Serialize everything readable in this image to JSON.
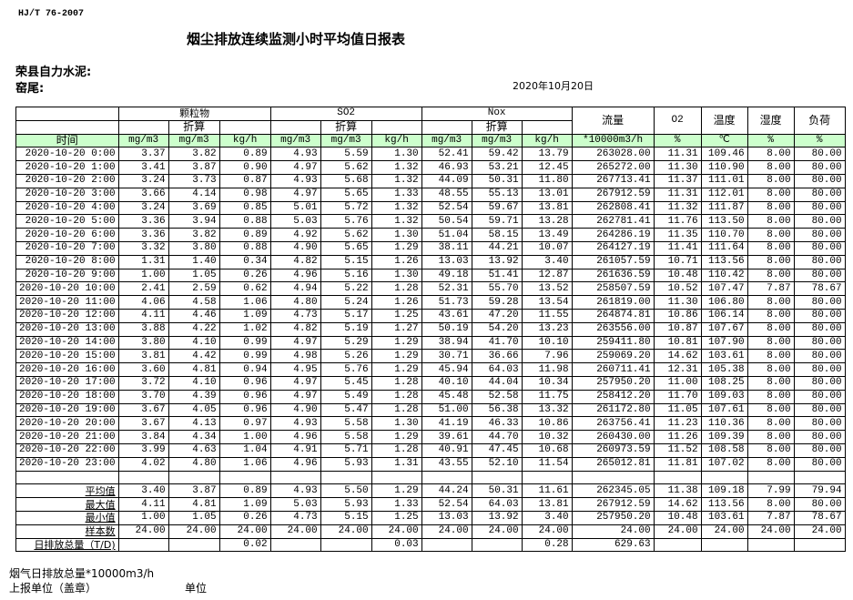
{
  "standard": "HJ/T  76-2007",
  "title": "烟尘排放连续监测小时平均值日报表",
  "company": "荣县自力水泥:",
  "kiln": "窑尾:",
  "date": "2020年10月20日",
  "header": {
    "pm": "颗粒物",
    "so2": "SO2",
    "nox": "Nox",
    "converted": "折算",
    "flow": "流量",
    "o2": "O2",
    "temp": "温度",
    "humidity": "湿度",
    "load": "负荷",
    "units": [
      "时间",
      "mg/m3",
      "mg/m3",
      "kg/h",
      "mg/m3",
      "mg/m3",
      "kg/h",
      "mg/m3",
      "mg/m3",
      "kg/h",
      "*10000m3/h",
      "%",
      "℃",
      "%",
      "%"
    ]
  },
  "colors": {
    "unit_row_bg": "#ccffcc"
  },
  "rows": [
    [
      "2020-10-20 0:00",
      "3.37",
      "3.82",
      "0.89",
      "4.93",
      "5.59",
      "1.30",
      "52.41",
      "59.42",
      "13.79",
      "263028.00",
      "11.31",
      "109.46",
      "8.00",
      "80.00"
    ],
    [
      "2020-10-20 1:00",
      "3.41",
      "3.87",
      "0.90",
      "4.97",
      "5.62",
      "1.32",
      "46.93",
      "53.21",
      "12.45",
      "265272.00",
      "11.30",
      "110.90",
      "8.00",
      "80.00"
    ],
    [
      "2020-10-20 2:00",
      "3.24",
      "3.73",
      "0.87",
      "4.93",
      "5.68",
      "1.32",
      "44.09",
      "50.31",
      "11.80",
      "267713.41",
      "11.37",
      "111.01",
      "8.00",
      "80.00"
    ],
    [
      "2020-10-20 3:00",
      "3.66",
      "4.14",
      "0.98",
      "4.97",
      "5.65",
      "1.33",
      "48.55",
      "55.13",
      "13.01",
      "267912.59",
      "11.31",
      "112.01",
      "8.00",
      "80.00"
    ],
    [
      "2020-10-20 4:00",
      "3.24",
      "3.69",
      "0.85",
      "5.01",
      "5.72",
      "1.32",
      "52.54",
      "59.67",
      "13.81",
      "262808.41",
      "11.32",
      "111.87",
      "8.00",
      "80.00"
    ],
    [
      "2020-10-20 5:00",
      "3.36",
      "3.94",
      "0.88",
      "5.03",
      "5.76",
      "1.32",
      "50.54",
      "59.71",
      "13.28",
      "262781.41",
      "11.76",
      "113.50",
      "8.00",
      "80.00"
    ],
    [
      "2020-10-20 6:00",
      "3.36",
      "3.82",
      "0.89",
      "4.92",
      "5.62",
      "1.30",
      "51.04",
      "58.15",
      "13.49",
      "264286.19",
      "11.35",
      "110.70",
      "8.00",
      "80.00"
    ],
    [
      "2020-10-20 7:00",
      "3.32",
      "3.80",
      "0.88",
      "4.90",
      "5.65",
      "1.29",
      "38.11",
      "44.21",
      "10.07",
      "264127.19",
      "11.41",
      "111.64",
      "8.00",
      "80.00"
    ],
    [
      "2020-10-20 8:00",
      "1.31",
      "1.40",
      "0.34",
      "4.82",
      "5.15",
      "1.26",
      "13.03",
      "13.92",
      "3.40",
      "261057.59",
      "10.71",
      "113.56",
      "8.00",
      "80.00"
    ],
    [
      "2020-10-20 9:00",
      "1.00",
      "1.05",
      "0.26",
      "4.96",
      "5.16",
      "1.30",
      "49.18",
      "51.41",
      "12.87",
      "261636.59",
      "10.48",
      "110.42",
      "8.00",
      "80.00"
    ],
    [
      "2020-10-20 10:00",
      "2.41",
      "2.59",
      "0.62",
      "4.94",
      "5.22",
      "1.28",
      "52.31",
      "55.70",
      "13.52",
      "258507.59",
      "10.52",
      "107.47",
      "7.87",
      "78.67"
    ],
    [
      "2020-10-20 11:00",
      "4.06",
      "4.58",
      "1.06",
      "4.80",
      "5.24",
      "1.26",
      "51.73",
      "59.28",
      "13.54",
      "261819.00",
      "11.30",
      "106.80",
      "8.00",
      "80.00"
    ],
    [
      "2020-10-20 12:00",
      "4.11",
      "4.46",
      "1.09",
      "4.73",
      "5.17",
      "1.25",
      "43.61",
      "47.20",
      "11.55",
      "264874.81",
      "10.86",
      "106.14",
      "8.00",
      "80.00"
    ],
    [
      "2020-10-20 13:00",
      "3.88",
      "4.22",
      "1.02",
      "4.82",
      "5.19",
      "1.27",
      "50.19",
      "54.20",
      "13.23",
      "263556.00",
      "10.87",
      "107.67",
      "8.00",
      "80.00"
    ],
    [
      "2020-10-20 14:00",
      "3.80",
      "4.10",
      "0.99",
      "4.97",
      "5.29",
      "1.29",
      "38.94",
      "41.70",
      "10.10",
      "259411.80",
      "10.81",
      "107.90",
      "8.00",
      "80.00"
    ],
    [
      "2020-10-20 15:00",
      "3.81",
      "4.42",
      "0.99",
      "4.98",
      "5.26",
      "1.29",
      "30.71",
      "36.66",
      "7.96",
      "259069.20",
      "14.62",
      "103.61",
      "8.00",
      "80.00"
    ],
    [
      "2020-10-20 16:00",
      "3.60",
      "4.81",
      "0.94",
      "4.95",
      "5.76",
      "1.29",
      "45.94",
      "64.03",
      "11.98",
      "260711.41",
      "12.31",
      "105.38",
      "8.00",
      "80.00"
    ],
    [
      "2020-10-20 17:00",
      "3.72",
      "4.10",
      "0.96",
      "4.97",
      "5.45",
      "1.28",
      "40.10",
      "44.04",
      "10.34",
      "257950.20",
      "11.00",
      "108.25",
      "8.00",
      "80.00"
    ],
    [
      "2020-10-20 18:00",
      "3.70",
      "4.39",
      "0.96",
      "4.97",
      "5.49",
      "1.28",
      "45.48",
      "52.58",
      "11.75",
      "258412.20",
      "11.70",
      "109.03",
      "8.00",
      "80.00"
    ],
    [
      "2020-10-20 19:00",
      "3.67",
      "4.05",
      "0.96",
      "4.90",
      "5.47",
      "1.28",
      "51.00",
      "56.38",
      "13.32",
      "261172.80",
      "11.05",
      "107.61",
      "8.00",
      "80.00"
    ],
    [
      "2020-10-20 20:00",
      "3.67",
      "4.13",
      "0.97",
      "4.93",
      "5.58",
      "1.30",
      "41.19",
      "46.33",
      "10.86",
      "263756.41",
      "11.23",
      "110.36",
      "8.00",
      "80.00"
    ],
    [
      "2020-10-20 21:00",
      "3.84",
      "4.34",
      "1.00",
      "4.96",
      "5.58",
      "1.29",
      "39.61",
      "44.70",
      "10.32",
      "260430.00",
      "11.26",
      "109.39",
      "8.00",
      "80.00"
    ],
    [
      "2020-10-20 22:00",
      "3.99",
      "4.63",
      "1.04",
      "4.91",
      "5.71",
      "1.28",
      "40.91",
      "47.45",
      "10.68",
      "260973.59",
      "11.52",
      "108.58",
      "8.00",
      "80.00"
    ],
    [
      "2020-10-20 23:00",
      "4.02",
      "4.80",
      "1.06",
      "4.96",
      "5.93",
      "1.31",
      "43.55",
      "52.10",
      "11.54",
      "265012.81",
      "11.81",
      "107.02",
      "8.00",
      "80.00"
    ]
  ],
  "summary": [
    [
      "平均值",
      "3.40",
      "3.87",
      "0.89",
      "4.93",
      "5.50",
      "1.29",
      "44.24",
      "50.31",
      "11.61",
      "262345.05",
      "11.38",
      "109.18",
      "7.99",
      "79.94"
    ],
    [
      "最大值",
      "4.11",
      "4.81",
      "1.09",
      "5.03",
      "5.93",
      "1.33",
      "52.54",
      "64.03",
      "13.81",
      "267912.59",
      "14.62",
      "113.56",
      "8.00",
      "80.00"
    ],
    [
      "最小值",
      "1.00",
      "1.05",
      "0.26",
      "4.73",
      "5.15",
      "1.25",
      "13.03",
      "13.92",
      "3.40",
      "257950.20",
      "10.48",
      "103.61",
      "7.87",
      "78.67"
    ],
    [
      "样本数",
      "24.00",
      "24.00",
      "24.00",
      "24.00",
      "24.00",
      "24.00",
      "24.00",
      "24.00",
      "24.00",
      "24.00",
      "24.00",
      "24.00",
      "24.00",
      "24.00"
    ],
    [
      "日排放总量（T/D)",
      "",
      "",
      "0.02",
      "",
      "",
      "0.03",
      "",
      "",
      "0.28",
      "629.63",
      "",
      "",
      "",
      ""
    ]
  ],
  "footer": {
    "flue_gas_total": "烟气日排放总量*10000m3/h",
    "reporting_unit": "上报单位（盖章）",
    "unit": "单位"
  }
}
